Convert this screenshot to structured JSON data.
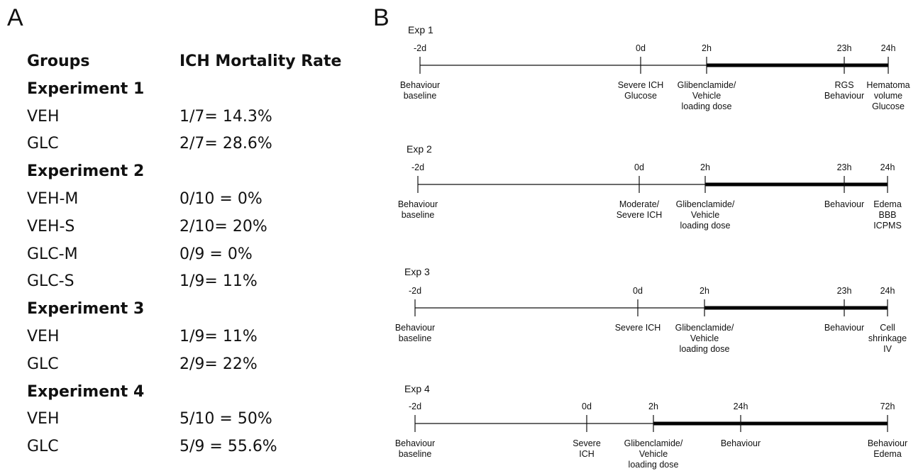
{
  "panel_a": {
    "letter": "A",
    "headers": [
      "Groups",
      "ICH Mortality Rate"
    ],
    "experiments": [
      {
        "title": "Experiment 1",
        "rows": [
          [
            "VEH",
            "1/7= 14.3%"
          ],
          [
            "GLC",
            "2/7= 28.6%"
          ]
        ]
      },
      {
        "title": "Experiment 2",
        "rows": [
          [
            "VEH-M",
            "0/10 = 0%"
          ],
          [
            "VEH-S",
            "2/10= 20%"
          ],
          [
            "GLC-M",
            "0/9 = 0%"
          ],
          [
            "GLC-S",
            "1/9= 11%"
          ]
        ]
      },
      {
        "title": "Experiment 3",
        "rows": [
          [
            "VEH",
            "1/9= 11%"
          ],
          [
            "GLC",
            "2/9= 22%"
          ]
        ]
      },
      {
        "title": "Experiment 4",
        "rows": [
          [
            "VEH",
            "5/10 = 50%"
          ],
          [
            "GLC",
            "5/9 = 55.6%"
          ]
        ]
      }
    ]
  },
  "panel_b": {
    "letter": "B",
    "experiments": [
      {
        "title": "Exp 1",
        "times": [
          "-2d",
          "0d",
          "2h",
          "23h",
          "24h"
        ],
        "labels": [
          [
            "Behaviour",
            "baseline"
          ],
          [
            "Severe ICH",
            "Glucose"
          ],
          [
            "Glibenclamide/",
            "Vehicle",
            "loading dose"
          ],
          [
            "RGS",
            "Behaviour"
          ],
          [
            "Hematoma",
            "volume",
            "Glucose"
          ]
        ]
      },
      {
        "title": "Exp 2",
        "times": [
          "-2d",
          "0d",
          "2h",
          "23h",
          "24h"
        ],
        "labels": [
          [
            "Behaviour",
            "baseline"
          ],
          [
            "Moderate/",
            "Severe ICH"
          ],
          [
            "Glibenclamide/",
            "Vehicle",
            "loading dose"
          ],
          [
            "Behaviour"
          ],
          [
            "Edema",
            "BBB",
            "ICPMS"
          ]
        ]
      },
      {
        "title": "Exp 3",
        "times": [
          "-2d",
          "0d",
          "2h",
          "23h",
          "24h"
        ],
        "labels": [
          [
            "Behaviour",
            "baseline"
          ],
          [
            "Severe ICH"
          ],
          [
            "Glibenclamide/",
            "Vehicle",
            "loading dose"
          ],
          [
            "Behaviour"
          ],
          [
            "Cell",
            "shrinkage",
            "IV"
          ]
        ]
      },
      {
        "title": "Exp 4",
        "times": [
          "-2d",
          "0d",
          "2h",
          "24h",
          "72h"
        ],
        "labels": [
          [
            "Behaviour",
            "baseline"
          ],
          [
            "Severe",
            "ICH"
          ],
          [
            "Glibenclamide/",
            "Vehicle",
            "loading dose"
          ],
          [
            "Behaviour"
          ],
          [
            "Behaviour",
            "Edema"
          ]
        ]
      }
    ]
  }
}
